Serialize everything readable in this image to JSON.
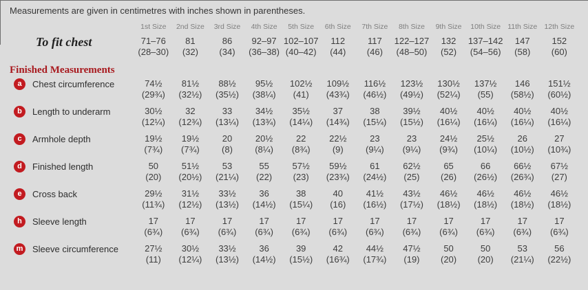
{
  "note": "Measurements are given in centimetres with inches shown in parentheses.",
  "section_heading": "Finished Measurements",
  "sizes": [
    "1st Size",
    "2nd Size",
    "3rd Size",
    "4th Size",
    "5th Size",
    "6th Size",
    "7th Size",
    "8th Size",
    "9th Size",
    "10th Size",
    "11th Size",
    "12th Size"
  ],
  "to_fit": {
    "label": "To fit chest",
    "cm": [
      "71–76",
      "81",
      "86",
      "92–97",
      "102–107",
      "112",
      "117",
      "122–127",
      "132",
      "137–142",
      "147",
      "152"
    ],
    "inches": [
      "(28–30)",
      "(32)",
      "(34)",
      "(36–38)",
      "(40–42)",
      "(44)",
      "(46)",
      "(48–50)",
      "(52)",
      "(54–56)",
      "(58)",
      "(60)"
    ]
  },
  "measurements": [
    {
      "key": "a",
      "label": "Chest circumference",
      "cm": [
        "74½",
        "81½",
        "88½",
        "95½",
        "102½",
        "109½",
        "116½",
        "123½",
        "130½",
        "137½",
        "146",
        "151½"
      ],
      "inches": [
        "(29¾)",
        "(32½)",
        "(35½)",
        "(38¼)",
        "(41)",
        "(43¾)",
        "(46½)",
        "(49½)",
        "(52¼)",
        "(55)",
        "(58½)",
        "(60½)"
      ]
    },
    {
      "key": "b",
      "label": "Length to underarm",
      "cm": [
        "30½",
        "32",
        "33",
        "34½",
        "35½",
        "37",
        "38",
        "39½",
        "40½",
        "40½",
        "40½",
        "40½"
      ],
      "inches": [
        "(12¼)",
        "(12¾)",
        "(13¼)",
        "(13¾)",
        "(14¼)",
        "(14¾)",
        "(15¼)",
        "(15½)",
        "(16¼)",
        "(16¼)",
        "(16¼)",
        "(16¼)"
      ]
    },
    {
      "key": "c",
      "label": "Armhole depth",
      "cm": [
        "19½",
        "19½",
        "20",
        "20½",
        "22",
        "22½",
        "23",
        "23",
        "24½",
        "25½",
        "26",
        "27"
      ],
      "inches": [
        "(7¾)",
        "(7¾)",
        "(8)",
        "(8¼)",
        "(8¾)",
        "(9)",
        "(9¼)",
        "(9¼)",
        "(9¾)",
        "(10¼)",
        "(10½)",
        "(10¾)"
      ]
    },
    {
      "key": "d",
      "label": "Finished length",
      "cm": [
        "50",
        "51½",
        "53",
        "55",
        "57½",
        "59½",
        "61",
        "62½",
        "65",
        "66",
        "66½",
        "67½"
      ],
      "inches": [
        "(20)",
        "(20½)",
        "(21¼)",
        "(22)",
        "(23)",
        "(23¾)",
        "(24½)",
        "(25)",
        "(26)",
        "(26½)",
        "(26¾)",
        "(27)"
      ]
    },
    {
      "key": "e",
      "label": "Cross back",
      "cm": [
        "29½",
        "31½",
        "33½",
        "36",
        "38",
        "40",
        "41½",
        "43½",
        "46½",
        "46½",
        "46½",
        "46½"
      ],
      "inches": [
        "(11¾)",
        "(12½)",
        "(13½)",
        "(14½)",
        "(15¼)",
        "(16)",
        "(16½)",
        "(17½)",
        "(18½)",
        "(18½)",
        "(18½)",
        "(18½)"
      ]
    },
    {
      "key": "h",
      "label": "Sleeve length",
      "cm": [
        "17",
        "17",
        "17",
        "17",
        "17",
        "17",
        "17",
        "17",
        "17",
        "17",
        "17",
        "17"
      ],
      "inches": [
        "(6¾)",
        "(6¾)",
        "(6¾)",
        "(6¾)",
        "(6¾)",
        "(6¾)",
        "(6¾)",
        "(6¾)",
        "(6¾)",
        "(6¾)",
        "(6¾)",
        "(6¾)"
      ]
    },
    {
      "key": "m",
      "label": "Sleeve circumference",
      "cm": [
        "27½",
        "30½",
        "33½",
        "36",
        "39",
        "42",
        "44½",
        "47½",
        "50",
        "50",
        "53",
        "56"
      ],
      "inches": [
        "(11)",
        "(12¼)",
        "(13½)",
        "(14½)",
        "(15½)",
        "(16¾)",
        "(17¾)",
        "(19)",
        "(20)",
        "(20)",
        "(21¼)",
        "(22½)"
      ]
    }
  ],
  "colors": {
    "background": "#dcdcdc",
    "badge_red": "#c21b20",
    "heading_red": "#a8191e",
    "size_header_gray": "#7e7e7e",
    "text": "#3d3d3d"
  }
}
